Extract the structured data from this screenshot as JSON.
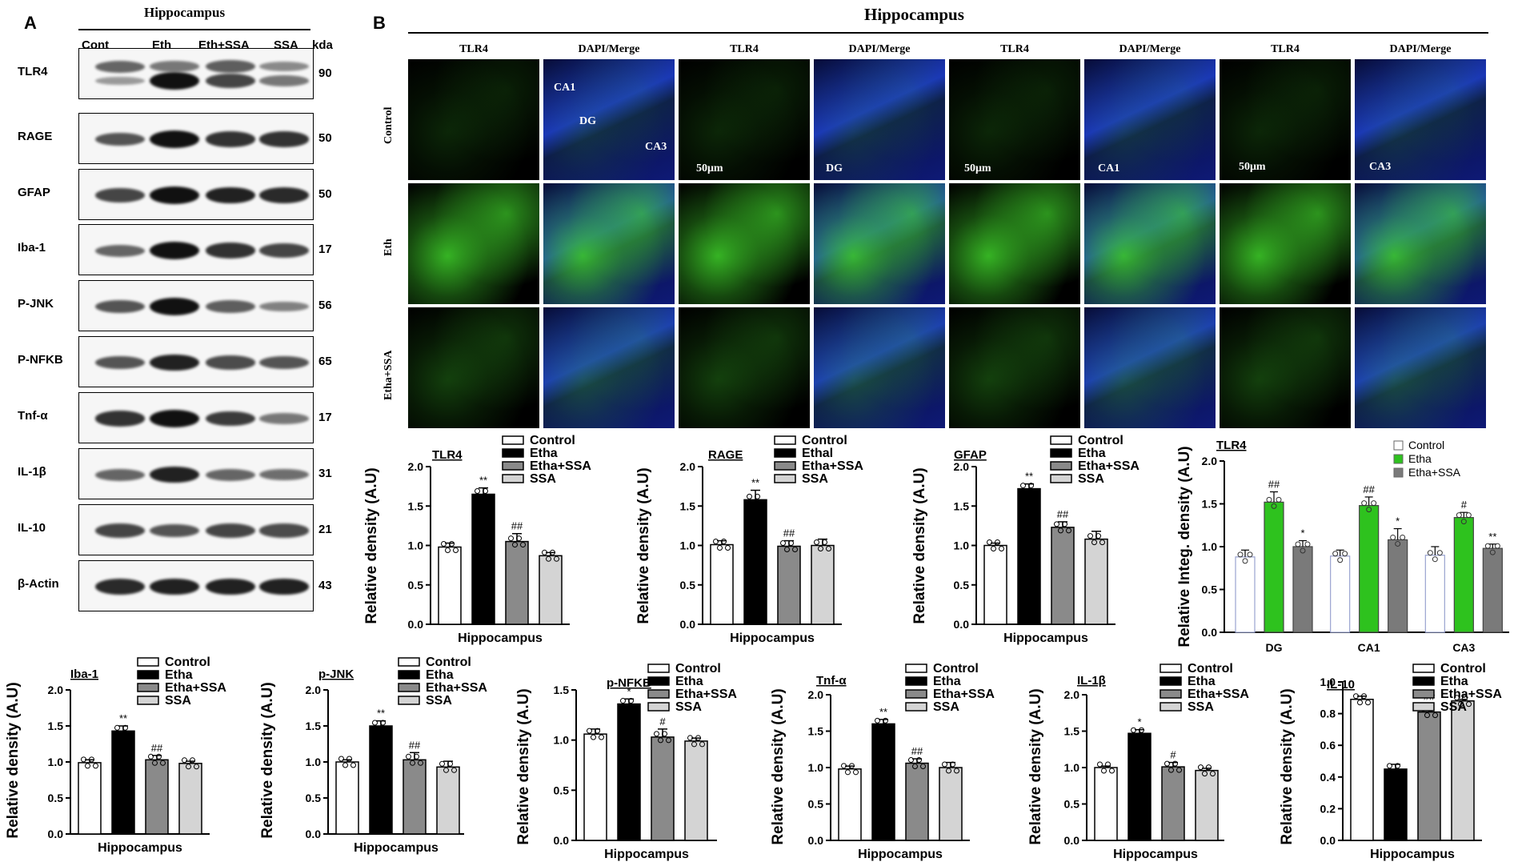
{
  "panelA": {
    "letter": "A",
    "title": "Hippocampus",
    "lanes": [
      "Cont",
      "Eth",
      "Eth+SSA",
      "SSA"
    ],
    "kda_header": "kda",
    "blots": [
      {
        "name": "TLR4",
        "kda": "90"
      },
      {
        "name": "RAGE",
        "kda": "50"
      },
      {
        "name": "GFAP",
        "kda": "50"
      },
      {
        "name": "Iba-1",
        "kda": "17"
      },
      {
        "name": "P-JNK",
        "kda": "56"
      },
      {
        "name": "P-NFKB",
        "kda": "65"
      },
      {
        "name": "Tnf-α",
        "kda": "17"
      },
      {
        "name": "IL-1β",
        "kda": "31"
      },
      {
        "name": "IL-10",
        "kda": "21"
      },
      {
        "name": "β-Actin",
        "kda": "43"
      }
    ]
  },
  "panelB": {
    "letter": "B",
    "title": "Hippocampus",
    "columns": [
      "TLR4",
      "DAPI/Merge",
      "TLR4",
      "DAPI/Merge",
      "TLR4",
      "DAPI/Merge",
      "TLR4",
      "DAPI/Merge"
    ],
    "rows": [
      "Control",
      "Eth",
      "Etha+SSA"
    ],
    "annotations": {
      "ca1": "CA1",
      "dg": "DG",
      "ca3": "CA3",
      "scale": "50μm"
    },
    "colors": {
      "tlr4": "#3fd22a",
      "dapi": "#1a2fd8",
      "background": "#000000"
    }
  },
  "chart_data": [
    {
      "type": "bar",
      "title": "TLR4",
      "ylabel": "Relative density (A.U)",
      "xlabel": "Hippocampus",
      "ylim": [
        0,
        2.0
      ],
      "yticks": [
        "0.0",
        "0.5",
        "1.0",
        "1.5",
        "2.0"
      ],
      "legend": [
        "Control",
        "Etha",
        "Etha+SSA",
        "SSA"
      ],
      "categories": [
        "Control",
        "Etha",
        "Etha+SSA",
        "SSA"
      ],
      "values": [
        0.98,
        1.65,
        1.05,
        0.87
      ],
      "errors": [
        0.05,
        0.08,
        0.1,
        0.04
      ],
      "annotations": [
        "",
        "**",
        "##",
        ""
      ]
    },
    {
      "type": "bar",
      "title": "RAGE",
      "ylabel": "Relative density (A.U)",
      "xlabel": "Hippocampus",
      "ylim": [
        0,
        2.0
      ],
      "yticks": [
        "0.0",
        "0.5",
        "1.0",
        "1.5",
        "2.0"
      ],
      "legend": [
        "Control",
        "Ethal",
        "Etha+SSA",
        "SSA"
      ],
      "categories": [
        "Control",
        "Ethal",
        "Etha+SSA",
        "SSA"
      ],
      "values": [
        1.01,
        1.58,
        0.99,
        1.0
      ],
      "errors": [
        0.05,
        0.12,
        0.07,
        0.08
      ],
      "annotations": [
        "",
        "**",
        "##",
        ""
      ]
    },
    {
      "type": "bar",
      "title": "GFAP",
      "ylabel": "Relative density (A.U)",
      "xlabel": "Hippocampus",
      "ylim": [
        0,
        2.0
      ],
      "yticks": [
        "0.0",
        "0.5",
        "1.0",
        "1.5",
        "2.0"
      ],
      "legend": [
        "Control",
        "Etha",
        "Etha+SSA",
        "SSA"
      ],
      "categories": [
        "Control",
        "Etha",
        "Etha+SSA",
        "SSA"
      ],
      "values": [
        1.0,
        1.72,
        1.23,
        1.08
      ],
      "errors": [
        0.03,
        0.06,
        0.07,
        0.1
      ],
      "annotations": [
        "",
        "**",
        "##",
        ""
      ]
    },
    {
      "type": "bar",
      "title": "TLR4",
      "ylabel": "Relative Integ. density (A.U)",
      "xlabel": "",
      "ylim": [
        0,
        2.0
      ],
      "yticks": [
        "0.0",
        "0.5",
        "1.0",
        "1.5",
        "2.0"
      ],
      "legend": [
        "Control",
        "Etha",
        "Etha+SSA"
      ],
      "categories": [
        "DG",
        "CA1",
        "CA3"
      ],
      "series": [
        {
          "name": "Control",
          "values": [
            0.88,
            0.89,
            0.9
          ],
          "errors": [
            0.08,
            0.07,
            0.1
          ],
          "annotations": [
            "",
            "",
            ""
          ]
        },
        {
          "name": "Etha",
          "values": [
            1.52,
            1.48,
            1.34
          ],
          "errors": [
            0.12,
            0.1,
            0.06
          ],
          "annotations": [
            "##",
            "##",
            "#"
          ]
        },
        {
          "name": "Etha+SSA",
          "values": [
            1.0,
            1.08,
            0.98
          ],
          "errors": [
            0.07,
            0.13,
            0.05
          ],
          "annotations": [
            "*",
            "*",
            "**"
          ]
        }
      ]
    },
    {
      "type": "bar",
      "title": "Iba-1",
      "ylabel": "Relative density (A.U)",
      "xlabel": "Hippocampus",
      "ylim": [
        0,
        2.0
      ],
      "yticks": [
        "0.0",
        "0.5",
        "1.0",
        "1.5",
        "2.0"
      ],
      "legend": [
        "Control",
        "Etha",
        "Etha+SSA",
        "SSA"
      ],
      "categories": [
        "Control",
        "Etha",
        "Etha+SSA",
        "SSA"
      ],
      "values": [
        0.99,
        1.43,
        1.03,
        0.98
      ],
      "errors": [
        0.04,
        0.07,
        0.06,
        0.03
      ],
      "annotations": [
        "",
        "**",
        "##",
        ""
      ]
    },
    {
      "type": "bar",
      "title": "p-JNK",
      "ylabel": "Relative density (A.U)",
      "xlabel": "Hippocampus",
      "ylim": [
        0,
        2.0
      ],
      "yticks": [
        "0.0",
        "0.5",
        "1.0",
        "1.5",
        "2.0"
      ],
      "legend": [
        "Control",
        "Etha",
        "Etha+SSA",
        "SSA"
      ],
      "categories": [
        "Control",
        "Etha",
        "Etha+SSA",
        "SSA"
      ],
      "values": [
        1.0,
        1.5,
        1.03,
        0.93
      ],
      "errors": [
        0.03,
        0.07,
        0.1,
        0.08
      ],
      "annotations": [
        "",
        "**",
        "##",
        ""
      ]
    },
    {
      "type": "bar",
      "title": "p-NFKB",
      "ylabel": "Relative density (A.U)",
      "xlabel": "Hippocampus",
      "ylim": [
        0,
        1.5
      ],
      "yticks": [
        "0.0",
        "0.5",
        "1.0",
        "1.5"
      ],
      "legend": [
        "Control",
        "Etha",
        "Etha+SSA",
        "SSA"
      ],
      "categories": [
        "Control",
        "Etha",
        "Etha+SSA",
        "SSA"
      ],
      "values": [
        1.06,
        1.36,
        1.03,
        0.99
      ],
      "errors": [
        0.05,
        0.05,
        0.08,
        0.03
      ],
      "annotations": [
        "",
        "*",
        "#",
        ""
      ]
    },
    {
      "type": "bar",
      "title": "Tnf-α",
      "ylabel": "Relative density (A.U)",
      "xlabel": "Hippocampus",
      "ylim": [
        0,
        2.0
      ],
      "yticks": [
        "0.0",
        "0.5",
        "1.0",
        "1.5",
        "2.0"
      ],
      "legend": [
        "Control",
        "Etha",
        "Etha+SSA",
        "SSA"
      ],
      "categories": [
        "Control",
        "Etha",
        "Etha+SSA",
        "SSA"
      ],
      "values": [
        0.98,
        1.6,
        1.06,
        1.0
      ],
      "errors": [
        0.04,
        0.06,
        0.06,
        0.07
      ],
      "annotations": [
        "",
        "**",
        "##",
        ""
      ]
    },
    {
      "type": "bar",
      "title": "IL-1β",
      "ylabel": "Relative density (A.U)",
      "xlabel": "Hippocampus",
      "ylim": [
        0,
        2.0
      ],
      "yticks": [
        "0.0",
        "0.5",
        "1.0",
        "1.5",
        "2.0"
      ],
      "legend": [
        "Control",
        "Etha",
        "Etha+SSA",
        "SSA"
      ],
      "categories": [
        "Control",
        "Etha",
        "Etha+SSA",
        "SSA"
      ],
      "values": [
        1.0,
        1.47,
        1.01,
        0.96
      ],
      "errors": [
        0.02,
        0.05,
        0.06,
        0.03
      ],
      "annotations": [
        "",
        "*",
        "#",
        ""
      ]
    },
    {
      "type": "bar",
      "title": "IL-10",
      "ylabel": "Relative density (A.U)",
      "xlabel": "Hippocampus",
      "ylim": [
        0,
        1.0
      ],
      "yticks": [
        "0.0",
        "0.2",
        "0.4",
        "0.6",
        "0.8",
        "1.0"
      ],
      "legend": [
        "Control",
        "Etha",
        "Etha+SSA",
        "SSA"
      ],
      "categories": [
        "Control",
        "Etha",
        "Etha+SSA",
        "SSA"
      ],
      "values": [
        0.89,
        0.45,
        0.81,
        0.88
      ],
      "errors": [
        0.02,
        0.03,
        0.05,
        0.01
      ],
      "annotations": [
        "",
        "",
        "##",
        ""
      ]
    }
  ]
}
